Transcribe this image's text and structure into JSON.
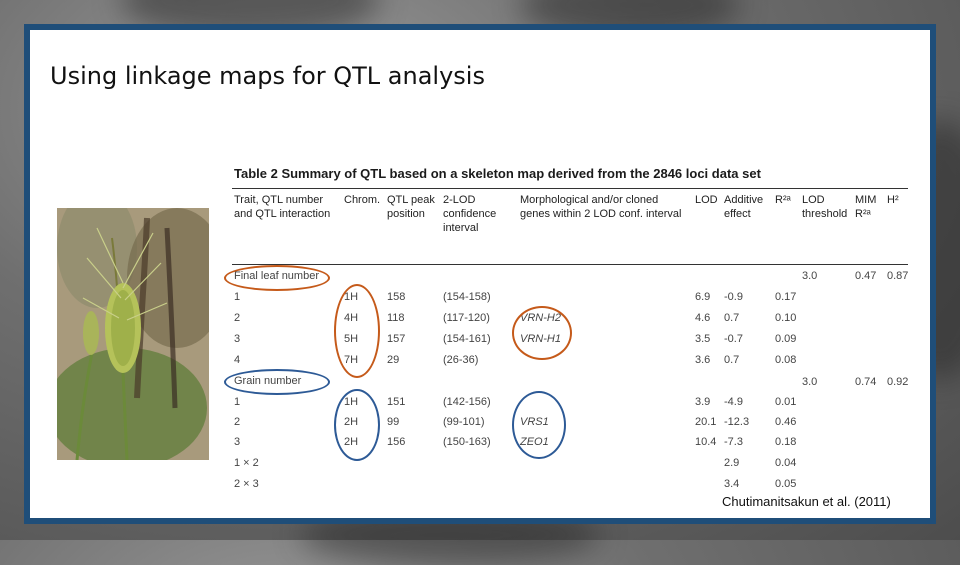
{
  "slide": {
    "title": "Using linkage maps for QTL analysis",
    "credit": "Chutimanitsakun et al. (2011)"
  },
  "table": {
    "caption": "Table 2 Summary of QTL based on a skeleton map derived from the 2846 loci data set",
    "headers": {
      "trait": [
        "Trait, QTL number",
        "and QTL interaction"
      ],
      "chrom": [
        "Chrom."
      ],
      "peak": [
        "QTL peak",
        "position"
      ],
      "lod2": [
        "2-LOD",
        "confidence",
        "interval"
      ],
      "genes": [
        "Morphological and/or cloned",
        "genes within 2 LOD conf. interval"
      ],
      "lod": [
        "LOD"
      ],
      "additive": [
        "Additive",
        "effect"
      ],
      "r2": [
        "R²ᵃ"
      ],
      "threshold": [
        "LOD",
        "threshold"
      ],
      "mim": [
        "MIM",
        "R²ᵃ"
      ],
      "h2": [
        "H²"
      ]
    },
    "groups": [
      {
        "label": "Final leaf number",
        "threshold": "3.0",
        "mim": "0.47",
        "h2": "0.87",
        "rows": [
          {
            "trait": "1",
            "chrom": "1H",
            "peak": "158",
            "ci": "(154-158)",
            "gene": "",
            "lod": "6.9",
            "add": "-0.9",
            "r2": "0.17"
          },
          {
            "trait": "2",
            "chrom": "4H",
            "peak": "118",
            "ci": "(117-120)",
            "gene": "VRN-H2",
            "lod": "4.6",
            "add": "0.7",
            "r2": "0.10"
          },
          {
            "trait": "3",
            "chrom": "5H",
            "peak": "157",
            "ci": "(154-161)",
            "gene": "VRN-H1",
            "lod": "3.5",
            "add": "-0.7",
            "r2": "0.09"
          },
          {
            "trait": "4",
            "chrom": "7H",
            "peak": "29",
            "ci": "(26-36)",
            "gene": "",
            "lod": "3.6",
            "add": "0.7",
            "r2": "0.08"
          }
        ]
      },
      {
        "label": "Grain number",
        "threshold": "3.0",
        "mim": "0.74",
        "h2": "0.92",
        "rows": [
          {
            "trait": "1",
            "chrom": "1H",
            "peak": "151",
            "ci": "(142-156)",
            "gene": "",
            "lod": "3.9",
            "add": "-4.9",
            "r2": "0.01"
          },
          {
            "trait": "2",
            "chrom": "2H",
            "peak": "99",
            "ci": "(99-101)",
            "gene": "VRS1",
            "lod": "20.1",
            "add": "-12.3",
            "r2": "0.46"
          },
          {
            "trait": "3",
            "chrom": "2H",
            "peak": "156",
            "ci": "(150-163)",
            "gene": "ZEO1",
            "lod": "10.4",
            "add": "-7.3",
            "r2": "0.18"
          },
          {
            "trait": "1 × 2",
            "chrom": "",
            "peak": "",
            "ci": "",
            "gene": "",
            "lod": "",
            "add": "2.9",
            "r2": "0.04"
          },
          {
            "trait": "2 × 3",
            "chrom": "",
            "peak": "",
            "ci": "",
            "gene": "",
            "lod": "",
            "add": "3.4",
            "r2": "0.05"
          }
        ]
      }
    ]
  },
  "colors": {
    "slide_border": "#1f4e79",
    "orange_highlight": "#c55a1a",
    "blue_highlight": "#2d5a96"
  }
}
